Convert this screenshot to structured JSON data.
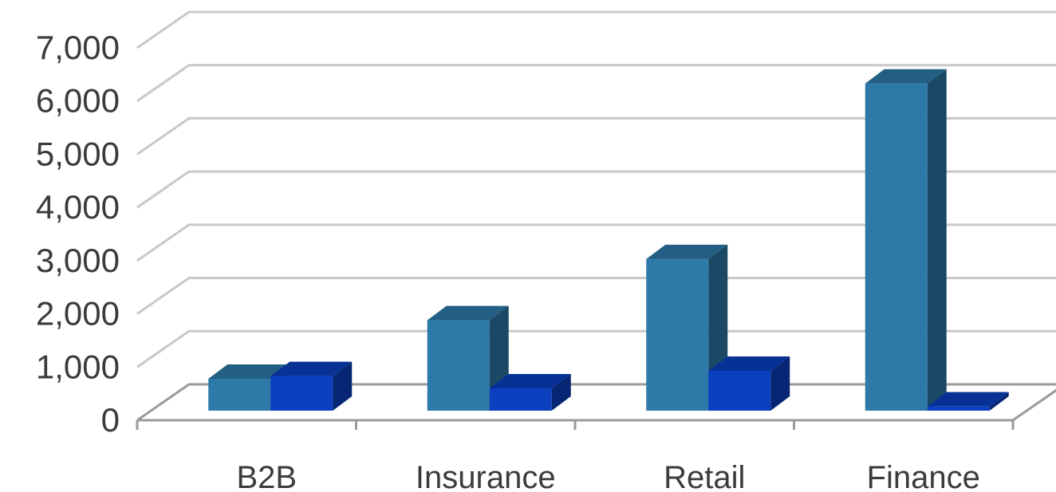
{
  "chart_data": {
    "type": "bar",
    "categories": [
      "B2B",
      "Insurance",
      "Retail",
      "Finance"
    ],
    "series": [
      {
        "values": [
          600,
          1700,
          2850,
          6150
        ],
        "color": "#2d79a8"
      },
      {
        "values": [
          650,
          420,
          750,
          80
        ],
        "color": "#0a3fbf"
      }
    ],
    "y_ticks": [
      "0",
      "1,000",
      "2,000",
      "3,000",
      "4,000",
      "5,000",
      "6,000",
      "7,000"
    ],
    "ylim": [
      0,
      7000
    ],
    "grid": true,
    "legend": "none",
    "style": "3d-clustered-column"
  }
}
